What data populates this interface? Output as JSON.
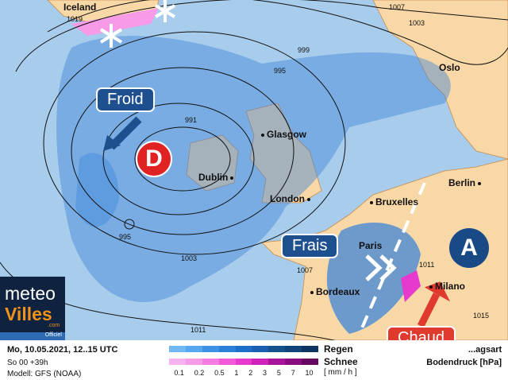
{
  "map": {
    "cities": [
      "Iceland",
      "Oslo",
      "Glasgow",
      "Dublin",
      "London",
      "Bruxelles",
      "Berlin",
      "Paris",
      "Bordeaux",
      "Milano"
    ],
    "isobar_labels": [
      "1019",
      "1007",
      "1003",
      "999",
      "995",
      "991",
      "995",
      "1003",
      "1007",
      "1011",
      "1011",
      "1015"
    ],
    "annotations": {
      "froid": "Froid",
      "low": "D",
      "frais": "Frais",
      "high": "A",
      "chaud": "Chaud"
    },
    "colors": {
      "sea": "#a8cdec",
      "land": "#f8d8a6",
      "rain": "#3f86d8",
      "low": "#e02222",
      "high": "#1a4a86",
      "chaud": "#e03a2e"
    }
  },
  "logo": {
    "line1": "meteo",
    "line2": "Villes",
    "suffix": ".com",
    "badge": "Officiel"
  },
  "legend": {
    "date": "Mo, 10.05.2021, 12..15 UTC",
    "run": "So 00 +39h",
    "model": "Modell: GFS (NOAA)",
    "rain_label": "Regen",
    "snow_label": "Schnee",
    "units": "[ mm / h ]",
    "ticks": [
      "0.1",
      "0.2",
      "0.5",
      "1",
      "2",
      "3",
      "5",
      "7",
      "10"
    ],
    "type_label": "...agsart",
    "pressure_label": "Bodendruck [hPa]",
    "rain_colors": [
      "#6fb8f5",
      "#56a7ef",
      "#3d92e6",
      "#2a7fd9",
      "#1d6ec8",
      "#1960b0",
      "#14528f",
      "#0f4478",
      "#0b3560"
    ],
    "snow_colors": [
      "#f9b1ef",
      "#f79ae8",
      "#f47ce3",
      "#f05ad9",
      "#e63ace",
      "#cf22b8",
      "#a8139b",
      "#860c80",
      "#66075f"
    ]
  }
}
